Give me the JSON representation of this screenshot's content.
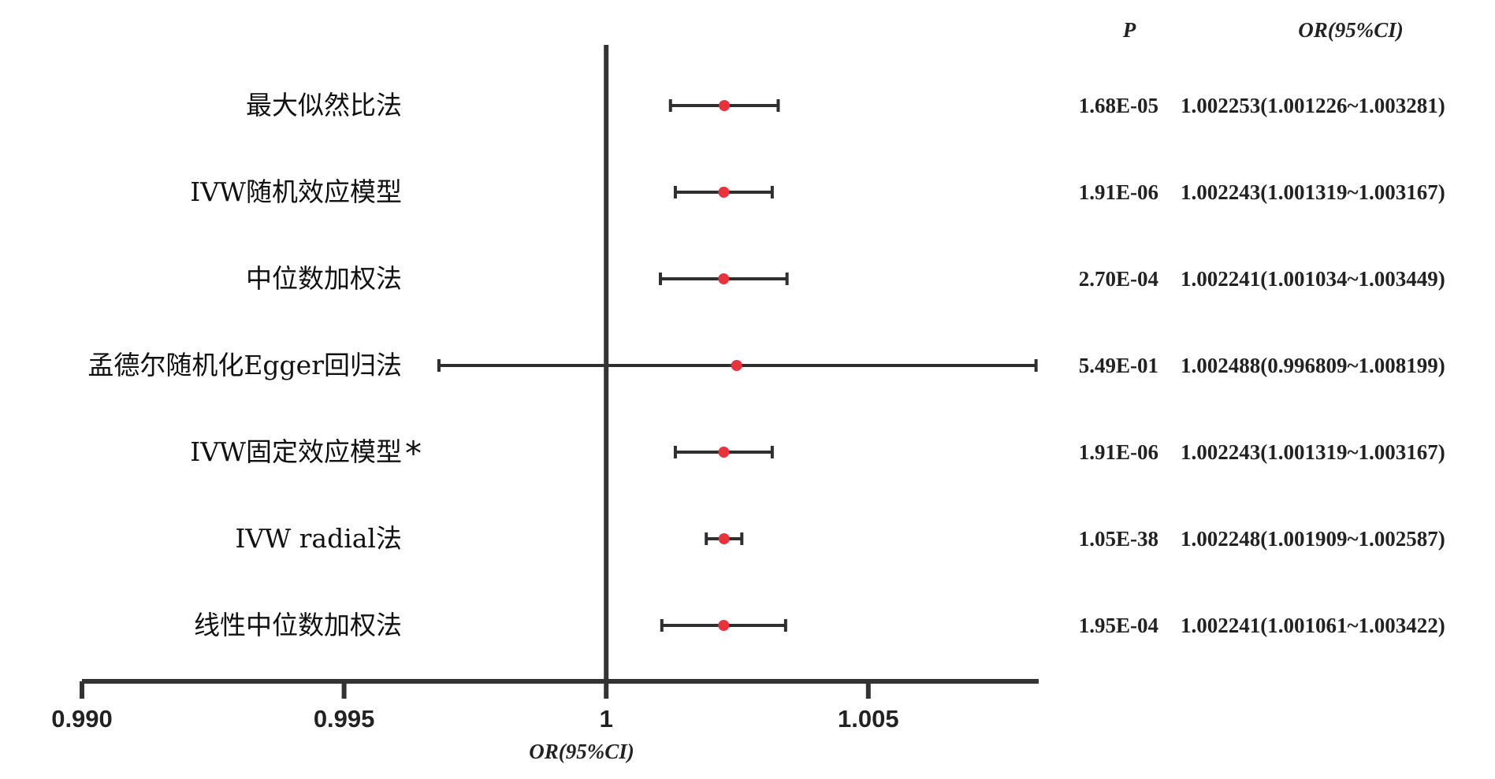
{
  "chart_data": {
    "type": "forest",
    "title": "",
    "xlabel": "OR(95%CI)",
    "ylabel": "",
    "xlim": [
      0.99,
      1.00825
    ],
    "reference_line": 1,
    "x_ticks": [
      {
        "value": 0.99,
        "label": "0.990"
      },
      {
        "value": 0.995,
        "label": "0.995"
      },
      {
        "value": 1.0,
        "label": "1"
      },
      {
        "value": 1.005,
        "label": "1.005"
      }
    ],
    "columns": {
      "p": "P",
      "or_ci": "OR(95%CI)"
    },
    "rows": [
      {
        "method": "最大似然比法",
        "marker": "",
        "or": 1.002253,
        "lower": 1.001226,
        "upper": 1.003281,
        "p": "1.68E-05",
        "or_ci": "1.002253(1.001226~1.003281)"
      },
      {
        "method": "IVW随机效应模型",
        "marker": "",
        "or": 1.002243,
        "lower": 1.001319,
        "upper": 1.003167,
        "p": "1.91E-06",
        "or_ci": "1.002243(1.001319~1.003167)"
      },
      {
        "method": "中位数加权法",
        "marker": "",
        "or": 1.002241,
        "lower": 1.001034,
        "upper": 1.003449,
        "p": "2.70E-04",
        "or_ci": "1.002241(1.001034~1.003449)"
      },
      {
        "method": "孟德尔随机化Egger回归法",
        "marker": "",
        "or": 1.002488,
        "lower": 0.996809,
        "upper": 1.008199,
        "p": "5.49E-01",
        "or_ci": "1.002488(0.996809~1.008199)"
      },
      {
        "method": "IVW固定效应模型",
        "marker": "*",
        "or": 1.002243,
        "lower": 1.001319,
        "upper": 1.003167,
        "p": "1.91E-06",
        "or_ci": "1.002243(1.001319~1.003167)"
      },
      {
        "method": "IVW radial法",
        "marker": "",
        "or": 1.002248,
        "lower": 1.001909,
        "upper": 1.002587,
        "p": "1.05E-38",
        "or_ci": "1.002248(1.001909~1.002587)"
      },
      {
        "method": "线性中位数加权法",
        "marker": "",
        "or": 1.002241,
        "lower": 1.001061,
        "upper": 1.003422,
        "p": "1.95E-04",
        "or_ci": "1.002241(1.001061~1.003422)"
      }
    ],
    "colors": {
      "point": "#e8323c",
      "line": "#2f2f2f",
      "axis": "#333333"
    }
  }
}
